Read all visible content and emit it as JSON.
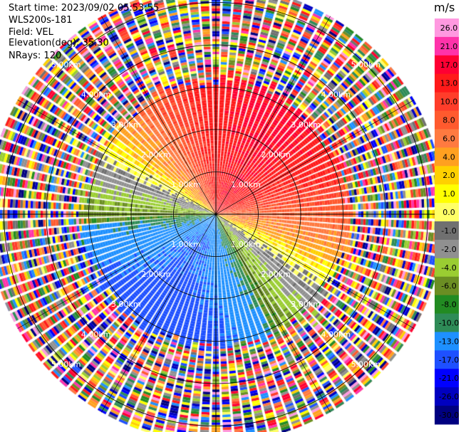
{
  "header": {
    "start_time": "Start time: 2023/09/02 05:53:55",
    "site": "WLS200s-181",
    "field": "Field: VEL",
    "elevation": "Elevation(deg): 35.30",
    "nrays": "NRays: 120"
  },
  "colorbar": {
    "title": "m/s",
    "labels": [
      "26.0",
      "21.0",
      "17.0",
      "13.0",
      "10.0",
      "8.0",
      "6.0",
      "4.0",
      "2.0",
      "1.0",
      "0.0",
      "-1.0",
      "-2.0",
      "-4.0",
      "-6.0",
      "-8.0",
      "-10.0",
      "-13.0",
      "-17.0",
      "-21.0",
      "-26.0",
      "-30.0"
    ],
    "colors": [
      "#ff99e0",
      "#ff33aa",
      "#ff0033",
      "#ff1a1a",
      "#ff3d2a",
      "#ff5a2e",
      "#ff7a40",
      "#ffa020",
      "#ffd000",
      "#ffff00",
      "#ffff66",
      "#707070",
      "#909090",
      "#9acd32",
      "#6b8e23",
      "#228b22",
      "#2e8b57",
      "#1e90ff",
      "#1e50ff",
      "#0000ff",
      "#0000c0",
      "#000080"
    ]
  },
  "chart_data": {
    "type": "heatmap",
    "plot_kind": "radar PPI (plan position indicator)",
    "field": "VEL",
    "units": "m/s",
    "nrays": 120,
    "elevation_deg": 35.3,
    "range_rings_km": [
      1.0,
      2.0,
      3.0,
      4.0,
      5.0
    ],
    "ring_labels": [
      "1.00km",
      "2.00km",
      "3.00km",
      "4.00km",
      "5.00km"
    ],
    "max_range_km": 5.4,
    "valid_range_km": 3.3,
    "color_range": [
      -30.0,
      26.0
    ],
    "velocity_pattern": {
      "northwest_to_east_sector": "receding, about 10 to 13 m/s",
      "southwest_to_south_sector": "approaching, about -13 to -17 m/s",
      "east_west_band": "near 0 m/s",
      "beyond_valid_range": "noise"
    }
  }
}
